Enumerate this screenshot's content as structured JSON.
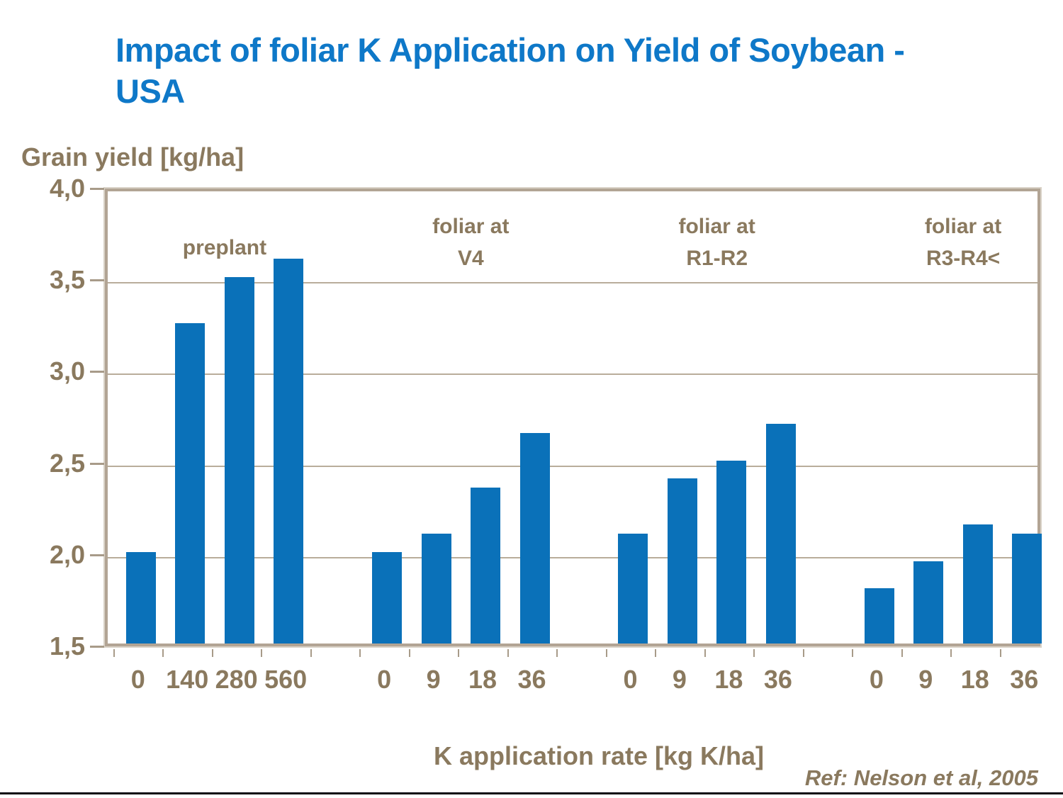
{
  "title": {
    "line1": "Impact of foliar K Application on Yield of Soybean -",
    "line2": "USA"
  },
  "y_axis_title": "Grain yield [kg/ha]",
  "x_axis_title": "K application rate [kg K/ha]",
  "reference": "Ref: Nelson et al, 2005",
  "colors": {
    "title_blue": "#0e78c8",
    "bar_blue": "#0a71b9",
    "text_brown": "#8a795e",
    "gridline_brown": "#b9ad9b",
    "frame_brown": "#b2a494",
    "bottom_rule_dark": "#0b0b13"
  },
  "chart_data": {
    "type": "bar",
    "title": "Impact of foliar K Application on Yield of Soybean - USA",
    "xlabel": "K application rate [kg K/ha]",
    "ylabel": "Grain yield [kg/ha]",
    "ylim": [
      1.5,
      4.0
    ],
    "yticks": [
      4.0,
      3.5,
      3.0,
      2.5,
      2.0,
      1.5
    ],
    "ytick_labels": [
      "4,0",
      "3,5",
      "3,0",
      "2,5",
      "2,0",
      "1,5"
    ],
    "grid": true,
    "legend": false,
    "bar_color": "#0a71b9",
    "groups": [
      {
        "label_lines": [
          "preplant"
        ],
        "categories": [
          "0",
          "140",
          "280",
          "560"
        ],
        "values": [
          2.0,
          3.25,
          3.5,
          3.6
        ]
      },
      {
        "label_lines": [
          "foliar at",
          "V4"
        ],
        "categories": [
          "0",
          "9",
          "18",
          "36"
        ],
        "values": [
          2.0,
          2.1,
          2.35,
          2.65
        ]
      },
      {
        "label_lines": [
          "foliar at",
          "R1-R2"
        ],
        "categories": [
          "0",
          "9",
          "18",
          "36"
        ],
        "values": [
          2.1,
          2.4,
          2.5,
          2.7
        ]
      },
      {
        "label_lines": [
          "foliar at",
          "R3-R4<"
        ],
        "categories": [
          "0",
          "9",
          "18",
          "36"
        ],
        "values": [
          1.8,
          1.95,
          2.15,
          2.1
        ]
      }
    ],
    "reference": "Ref: Nelson et al, 2005"
  }
}
